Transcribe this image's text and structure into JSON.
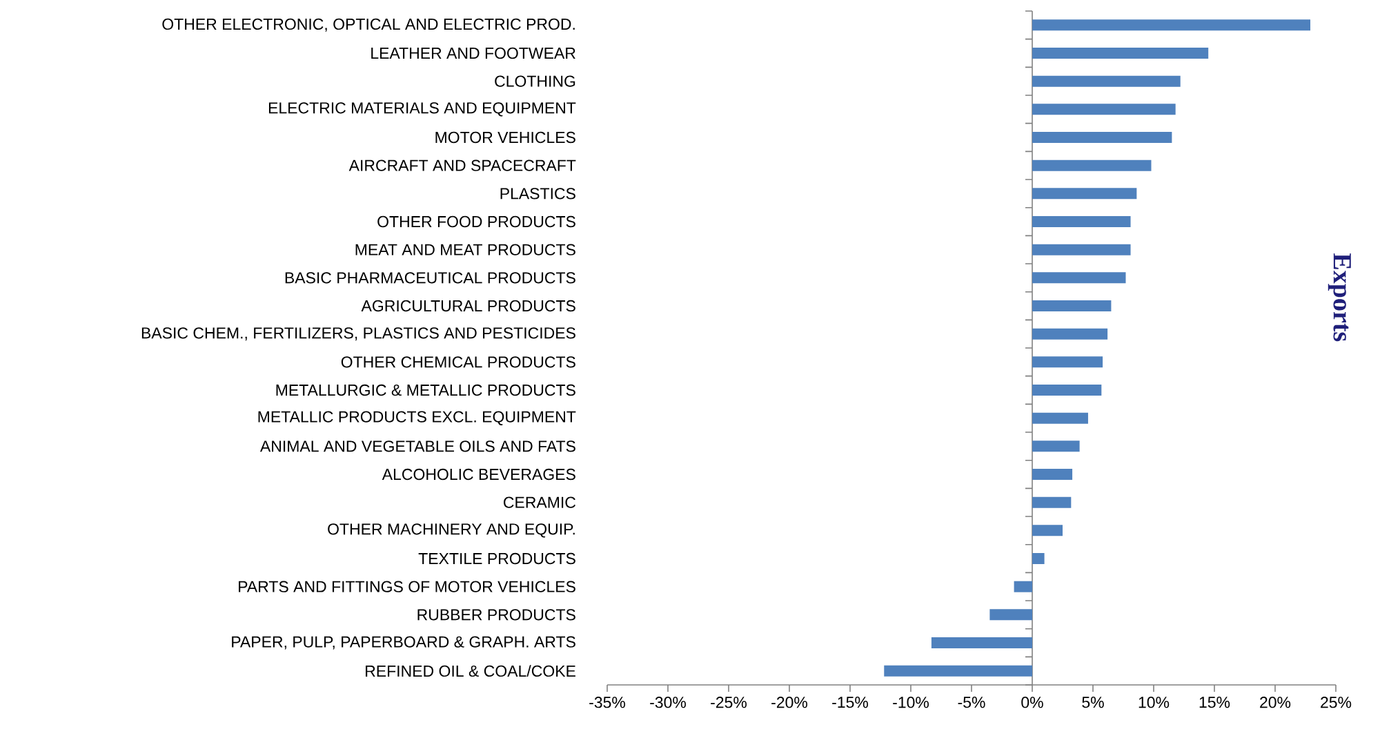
{
  "chart_data": {
    "type": "bar",
    "orientation": "horizontal",
    "title": "Exports",
    "categories": [
      "OTHER ELECTRONIC, OPTICAL AND ELECTRIC PROD.",
      "LEATHER AND FOOTWEAR",
      "CLOTHING",
      "ELECTRIC MATERIALS AND EQUIPMENT",
      "MOTOR VEHICLES",
      "AIRCRAFT AND SPACECRAFT",
      "PLASTICS",
      "OTHER FOOD PRODUCTS",
      "MEAT AND MEAT PRODUCTS",
      "BASIC PHARMACEUTICAL PRODUCTS",
      "AGRICULTURAL PRODUCTS",
      "BASIC CHEM., FERTILIZERS, PLASTICS AND PESTICIDES",
      "OTHER CHEMICAL PRODUCTS",
      "METALLURGIC & METALLIC PRODUCTS",
      "METALLIC PRODUCTS EXCL. EQUIPMENT",
      "ANIMAL AND VEGETABLE OILS AND FATS",
      "ALCOHOLIC BEVERAGES",
      "CERAMIC",
      "OTHER MACHINERY AND EQUIP.",
      "TEXTILE PRODUCTS",
      "PARTS AND FITTINGS OF MOTOR VEHICLES",
      "RUBBER PRODUCTS",
      "PAPER, PULP, PAPERBOARD & GRAPH. ARTS",
      "REFINED OIL & COAL/COKE"
    ],
    "values": [
      22.9,
      14.5,
      12.2,
      11.8,
      11.5,
      9.8,
      8.6,
      8.1,
      8.1,
      7.7,
      6.5,
      6.2,
      5.8,
      5.7,
      4.6,
      3.9,
      3.3,
      3.2,
      2.5,
      1.0,
      -1.5,
      -3.5,
      -8.3,
      -12.2
    ],
    "color": "#4f81bd",
    "xlim": [
      -35,
      25
    ],
    "xticks": [
      {
        "value": -35,
        "label": "-35%"
      },
      {
        "value": -30,
        "label": "-30%"
      },
      {
        "value": -25,
        "label": "-25%"
      },
      {
        "value": -20,
        "label": "-20%"
      },
      {
        "value": -15,
        "label": "-15%"
      },
      {
        "value": -10,
        "label": "-10%"
      },
      {
        "value": -5,
        "label": "-5%"
      },
      {
        "value": 0,
        "label": "0%"
      },
      {
        "value": 5,
        "label": "5%"
      },
      {
        "value": 10,
        "label": "10%"
      },
      {
        "value": 15,
        "label": "15%"
      },
      {
        "value": 20,
        "label": "20%"
      },
      {
        "value": 25,
        "label": "25%"
      }
    ]
  }
}
